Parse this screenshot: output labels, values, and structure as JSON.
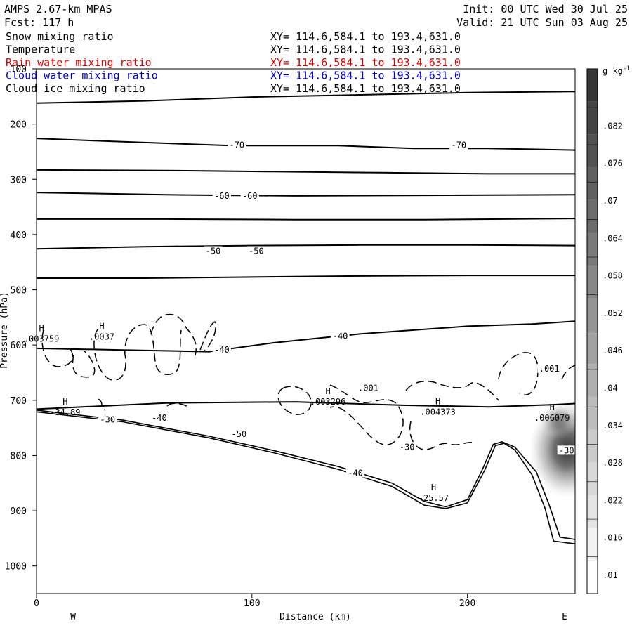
{
  "header": {
    "title": "AMPS 2.67-km MPAS",
    "forecast": "Fcst:  117 h",
    "init": "Init: 00 UTC Wed 30 Jul 25",
    "valid": "Valid: 21 UTC Sun 03 Aug 25"
  },
  "fields": [
    {
      "name": "Snow mixing ratio",
      "xy": "XY= 114.6,584.1 to 193.4,631.0",
      "color": "#000000"
    },
    {
      "name": "Temperature",
      "xy": "XY= 114.6,584.1 to 193.4,631.0",
      "color": "#000000"
    },
    {
      "name": "Rain water mixing ratio",
      "xy": "XY= 114.6,584.1 to 193.4,631.0",
      "color": "#e00000"
    },
    {
      "name": "Cloud water mixing ratio",
      "xy": "XY= 114.6,584.1 to 193.4,631.0",
      "color": "#0000cc"
    },
    {
      "name": "Cloud ice mixing ratio",
      "xy": "XY= 114.6,584.1 to 193.4,631.0",
      "color": "#000000"
    }
  ],
  "chart_data": {
    "type": "contour",
    "xlabel": "Distance (km)",
    "ylabel": "Pressure (hPa)",
    "xlim": [
      0,
      250
    ],
    "ylim": [
      1050,
      100
    ],
    "x_ticks": [
      0,
      100,
      200
    ],
    "y_ticks": [
      100,
      200,
      300,
      400,
      500,
      600,
      700,
      800,
      900,
      1000
    ],
    "west_label": "W",
    "east_label": "E",
    "colorbar": {
      "unit": "g kg",
      "unit_exponent": "-1",
      "ticks": [
        ".01",
        ".016",
        ".022",
        ".028",
        ".034",
        ".04",
        ".046",
        ".052",
        ".058",
        ".064",
        ".07",
        ".076",
        ".082"
      ],
      "shade_levels": 16
    },
    "temperature_contour_labels": [
      {
        "text": "-70",
        "x": 93,
        "p": 238
      },
      {
        "text": "-70",
        "x": 196,
        "p": 238
      },
      {
        "text": "-60",
        "x": 86,
        "p": 330
      },
      {
        "text": "-60",
        "x": 99,
        "p": 330
      },
      {
        "text": "-50",
        "x": 82,
        "p": 430
      },
      {
        "text": "-50",
        "x": 102,
        "p": 430
      },
      {
        "text": "-40",
        "x": 86,
        "p": 609
      },
      {
        "text": "-40",
        "x": 141,
        "p": 584
      },
      {
        "text": "-40",
        "x": 57,
        "p": 732
      },
      {
        "text": "-40",
        "x": 148,
        "p": 832
      },
      {
        "text": "-30",
        "x": 172,
        "p": 785
      },
      {
        "text": "-30",
        "x": 246,
        "p": 791
      },
      {
        "text": "-50",
        "x": 94,
        "p": 761
      },
      {
        "text": "-30",
        "x": 33,
        "p": 735
      }
    ],
    "extrema": [
      {
        "mark": "H",
        "value": "-34.89",
        "x": 12,
        "p": 708
      },
      {
        "mark": "H",
        "value": "-25.57",
        "x": 183,
        "p": 863
      },
      {
        "mark": "H",
        "value": ".0037",
        "x": 29,
        "p": 571
      },
      {
        "mark": "H",
        "value": ".003759",
        "x": 1,
        "p": 575
      },
      {
        "mark": "H",
        "value": ".003296",
        "x": 134,
        "p": 689
      },
      {
        "mark": "H",
        "value": ".004373",
        "x": 185,
        "p": 707
      },
      {
        "mark": "H",
        "value": ".006079",
        "x": 238,
        "p": 718
      }
    ],
    "mixing_ratio_labels": [
      {
        "text": ".001",
        "x": 154,
        "p": 678
      },
      {
        "text": ".001",
        "x": 238,
        "p": 643
      }
    ],
    "temperature_isotherms": [
      {
        "points": [
          [
            0,
            162
          ],
          [
            50,
            158
          ],
          [
            100,
            151
          ],
          [
            150,
            147
          ],
          [
            200,
            143
          ],
          [
            250,
            141
          ]
        ]
      },
      {
        "points": [
          [
            0,
            226
          ],
          [
            40,
            232
          ],
          [
            90,
            239
          ],
          [
            140,
            239
          ],
          [
            175,
            244
          ],
          [
            210,
            244
          ],
          [
            250,
            247
          ]
        ]
      },
      {
        "points": [
          [
            0,
            283
          ],
          [
            60,
            284
          ],
          [
            110,
            286
          ],
          [
            160,
            288
          ],
          [
            210,
            290
          ],
          [
            250,
            290
          ]
        ]
      },
      {
        "points": [
          [
            0,
            324
          ],
          [
            60,
            328
          ],
          [
            120,
            330
          ],
          [
            180,
            329
          ],
          [
            250,
            328
          ]
        ]
      },
      {
        "points": [
          [
            0,
            372
          ],
          [
            60,
            372
          ],
          [
            120,
            373
          ],
          [
            180,
            373
          ],
          [
            250,
            371
          ]
        ]
      },
      {
        "points": [
          [
            0,
            426
          ],
          [
            50,
            422
          ],
          [
            100,
            420
          ],
          [
            150,
            419
          ],
          [
            200,
            419
          ],
          [
            250,
            420
          ]
        ]
      },
      {
        "points": [
          [
            0,
            479
          ],
          [
            50,
            479
          ],
          [
            100,
            477
          ],
          [
            150,
            475
          ],
          [
            200,
            474
          ],
          [
            250,
            474
          ]
        ]
      },
      {
        "points": [
          [
            0,
            606
          ],
          [
            40,
            609
          ],
          [
            80,
            612
          ],
          [
            110,
            596
          ],
          [
            150,
            580
          ],
          [
            200,
            566
          ],
          [
            230,
            562
          ],
          [
            250,
            557
          ]
        ]
      },
      {
        "points": [
          [
            0,
            716
          ],
          [
            60,
            705
          ],
          [
            120,
            703
          ],
          [
            170,
            709
          ],
          [
            210,
            712
          ],
          [
            240,
            708
          ],
          [
            250,
            706
          ]
        ]
      }
    ],
    "terrain_lines": [
      {
        "points": [
          [
            0,
            718
          ],
          [
            40,
            736
          ],
          [
            80,
            765
          ],
          [
            110,
            791
          ],
          [
            140,
            820
          ],
          [
            165,
            850
          ],
          [
            180,
            883
          ],
          [
            190,
            893
          ],
          [
            200,
            880
          ],
          [
            207,
            825
          ],
          [
            212,
            780
          ],
          [
            216,
            775
          ],
          [
            222,
            785
          ],
          [
            232,
            830
          ],
          [
            238,
            890
          ],
          [
            243,
            948
          ],
          [
            250,
            952
          ]
        ]
      },
      {
        "points": [
          [
            0,
            721
          ],
          [
            40,
            739
          ],
          [
            80,
            768
          ],
          [
            110,
            795
          ],
          [
            140,
            825
          ],
          [
            165,
            856
          ],
          [
            180,
            890
          ],
          [
            190,
            896
          ],
          [
            200,
            886
          ],
          [
            208,
            827
          ],
          [
            213,
            782
          ],
          [
            217,
            778
          ],
          [
            222,
            790
          ],
          [
            230,
            835
          ],
          [
            236,
            895
          ],
          [
            240,
            955
          ],
          [
            250,
            960
          ]
        ]
      }
    ]
  }
}
